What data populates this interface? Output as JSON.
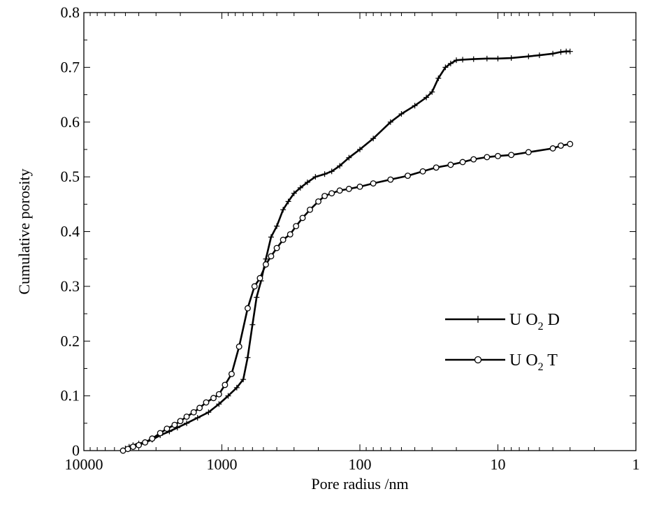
{
  "chart_data": {
    "type": "line",
    "title": "",
    "xlabel": "Pore radius /nm",
    "ylabel": "Cumulative porosity",
    "x_scale": "log",
    "x_reversed": true,
    "xlim": [
      10000,
      1
    ],
    "ylim": [
      0,
      0.8
    ],
    "x_ticks": [
      10000,
      1000,
      100,
      10,
      1
    ],
    "x_tick_labels": [
      "10000",
      "1000",
      "100",
      "10",
      "1"
    ],
    "y_ticks": [
      0,
      0.1,
      0.2,
      0.3,
      0.4,
      0.5,
      0.6,
      0.7,
      0.8
    ],
    "y_tick_labels": [
      "0",
      "0.1",
      "0.2",
      "0.3",
      "0.4",
      "0.5",
      "0.6",
      "0.7",
      "0.8"
    ],
    "grid": false,
    "legend_position": "right",
    "legend": [
      {
        "base": "U O",
        "sub": "2",
        "suffix": " D",
        "marker": "plus"
      },
      {
        "base": "U O",
        "sub": "2",
        "suffix": " T",
        "marker": "circle"
      }
    ],
    "series": [
      {
        "name": "UO2 D",
        "marker": "plus",
        "x": [
          5000,
          4700,
          4400,
          4000,
          3600,
          3200,
          2800,
          2400,
          2100,
          1800,
          1500,
          1250,
          1050,
          900,
          780,
          700,
          650,
          600,
          560,
          520,
          480,
          440,
          400,
          360,
          330,
          300,
          270,
          240,
          210,
          180,
          160,
          140,
          120,
          100,
          80,
          60,
          50,
          40,
          33,
          30,
          27,
          24,
          22,
          20,
          18,
          15,
          12,
          10,
          8,
          6,
          5,
          4,
          3.5,
          3.2,
          3
        ],
        "y": [
          0.004,
          0.007,
          0.01,
          0.013,
          0.015,
          0.02,
          0.028,
          0.035,
          0.042,
          0.05,
          0.06,
          0.07,
          0.085,
          0.1,
          0.115,
          0.13,
          0.17,
          0.23,
          0.28,
          0.31,
          0.35,
          0.39,
          0.41,
          0.44,
          0.455,
          0.47,
          0.48,
          0.49,
          0.5,
          0.505,
          0.51,
          0.52,
          0.535,
          0.55,
          0.57,
          0.6,
          0.615,
          0.63,
          0.645,
          0.655,
          0.68,
          0.7,
          0.707,
          0.713,
          0.714,
          0.715,
          0.716,
          0.716,
          0.717,
          0.72,
          0.722,
          0.725,
          0.728,
          0.729,
          0.729
        ]
      },
      {
        "name": "UO2 T",
        "marker": "circle",
        "x": [
          5200,
          4800,
          4400,
          4000,
          3600,
          3200,
          2800,
          2500,
          2200,
          2000,
          1800,
          1600,
          1450,
          1300,
          1150,
          1050,
          950,
          850,
          750,
          650,
          580,
          530,
          480,
          440,
          400,
          360,
          320,
          290,
          260,
          230,
          200,
          180,
          160,
          140,
          120,
          100,
          80,
          60,
          45,
          35,
          28,
          22,
          18,
          15,
          12,
          10,
          8,
          6,
          4,
          3.5,
          3
        ],
        "y": [
          0.0,
          0.003,
          0.007,
          0.01,
          0.015,
          0.022,
          0.032,
          0.04,
          0.047,
          0.054,
          0.062,
          0.07,
          0.078,
          0.088,
          0.096,
          0.103,
          0.12,
          0.14,
          0.19,
          0.26,
          0.3,
          0.315,
          0.34,
          0.355,
          0.37,
          0.385,
          0.395,
          0.41,
          0.425,
          0.44,
          0.455,
          0.465,
          0.47,
          0.475,
          0.478,
          0.482,
          0.488,
          0.495,
          0.502,
          0.51,
          0.517,
          0.522,
          0.527,
          0.532,
          0.536,
          0.538,
          0.54,
          0.545,
          0.552,
          0.557,
          0.56
        ]
      }
    ]
  }
}
